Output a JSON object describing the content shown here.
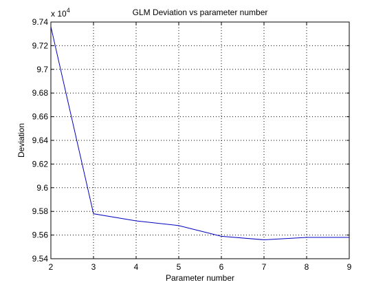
{
  "chart_data": {
    "type": "line",
    "title": "GLM Deviation vs parameter number",
    "xlabel": "Parameter number",
    "ylabel": "Deviation",
    "y_multiplier_label": "x 10",
    "y_multiplier_exponent": "4",
    "xlim": [
      2,
      9
    ],
    "ylim": [
      9.54,
      9.74
    ],
    "x_ticks": [
      "2",
      "3",
      "4",
      "5",
      "6",
      "7",
      "8",
      "9"
    ],
    "y_ticks": [
      "9.54",
      "9.56",
      "9.58",
      "9.6",
      "9.62",
      "9.64",
      "9.66",
      "9.68",
      "9.7",
      "9.72",
      "9.74"
    ],
    "grid": true,
    "series": [
      {
        "x": [
          2,
          3,
          4,
          5,
          6,
          7,
          8,
          9
        ],
        "values": [
          9.736,
          9.578,
          9.572,
          9.568,
          9.559,
          9.556,
          9.558,
          9.558
        ],
        "color": "#0000c0"
      }
    ]
  }
}
